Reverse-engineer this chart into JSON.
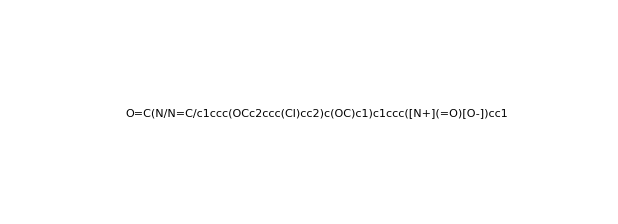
{
  "smiles": "O=C(N/N=C/c1ccc(OCc2ccc(Cl)cc2)c(OC)c1)c1ccc([N+](=O)[O-])cc1",
  "title": "",
  "background_color": "#ffffff",
  "figsize": [
    6.18,
    2.24
  ],
  "dpi": 100
}
